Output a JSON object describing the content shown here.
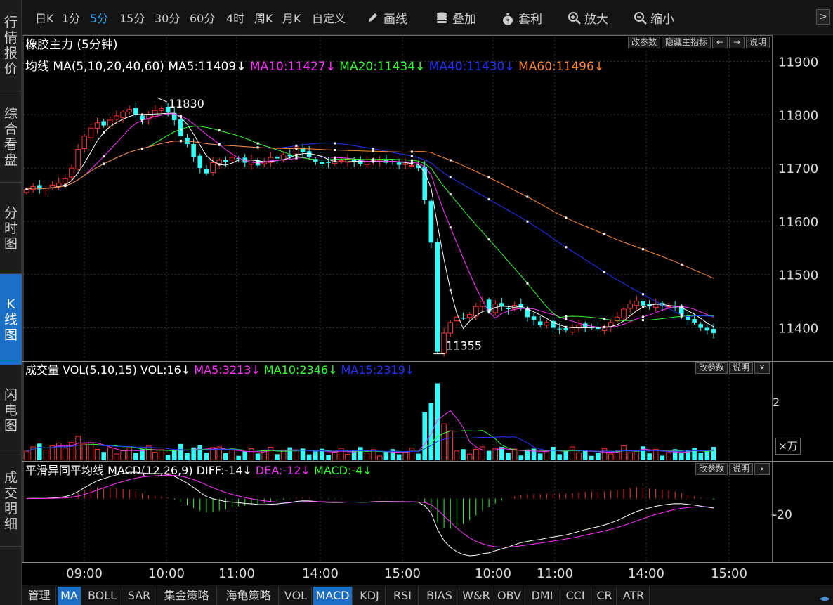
{
  "left_nav": [
    {
      "label": "行情报价",
      "active": false
    },
    {
      "label": "综合看盘",
      "active": false
    },
    {
      "label": "分时图",
      "active": false
    },
    {
      "label": "K线图",
      "active": true
    },
    {
      "label": "闪电图",
      "active": false
    },
    {
      "label": "成交明细",
      "active": false
    }
  ],
  "toolbar": {
    "periods": [
      "日K",
      "1分",
      "5分",
      "15分",
      "30分",
      "60分",
      "4时",
      "周K",
      "月K",
      "自定义"
    ],
    "active_period": "5分",
    "tools": [
      {
        "label": "画线",
        "icon": "pencil-icon"
      },
      {
        "label": "叠加",
        "icon": "database-icon"
      },
      {
        "label": "套利",
        "icon": "money-bag-icon"
      },
      {
        "label": "放大",
        "icon": "zoom-in-icon"
      },
      {
        "label": "缩小",
        "icon": "zoom-out-icon"
      }
    ],
    "next_label": ">"
  },
  "title": "橡胶主力 (5分钟)",
  "main_buttons": [
    "改参数",
    "隐藏主指标",
    "←",
    "→",
    "说明"
  ],
  "ma_legend": {
    "prefix": "均线 MA(5,10,20,40,60)",
    "items": [
      {
        "text": "MA5:11409↓",
        "color": "#ffffff"
      },
      {
        "text": "MA10:11427↓",
        "color": "#ff33ff"
      },
      {
        "text": "MA20:11434↓",
        "color": "#33ff33"
      },
      {
        "text": "MA40:11430↓",
        "color": "#2233ff"
      },
      {
        "text": "MA60:11496↓",
        "color": "#ff8833"
      }
    ]
  },
  "price_axis": [
    "11900",
    "11800",
    "11700",
    "11600",
    "11500",
    "11400"
  ],
  "annotations": {
    "high": "11830",
    "low": "11355"
  },
  "vol_legend": {
    "prefix": "成交量 VOL(5,10,15) VOL:16↓",
    "items": [
      {
        "text": "MA5:3213↓",
        "color": "#ff33ff"
      },
      {
        "text": "MA10:2346↓",
        "color": "#33ff33"
      },
      {
        "text": "MA15:2319↓",
        "color": "#2233ff"
      }
    ]
  },
  "vol_buttons": [
    "改参数",
    "说明",
    "x"
  ],
  "vol_axis": {
    "tick": "2",
    "unit": "×万"
  },
  "macd_legend": {
    "prefix": "平滑异同平均线 MACD(12,26,9) DIFF:-14↓",
    "items": [
      {
        "text": "DEA:-12↓",
        "color": "#ff33ff"
      },
      {
        "text": "MACD:-4↓",
        "color": "#33ff33"
      }
    ]
  },
  "macd_buttons": [
    "改参数",
    "说明",
    "x"
  ],
  "macd_axis": "-20",
  "time_axis": [
    "09:00",
    "10:00",
    "11:00",
    "14:00",
    "15:00",
    "10:00",
    "11:00",
    "14:00",
    "15:00"
  ],
  "bottom_tabs": [
    "管理",
    "MA",
    "BOLL",
    "SAR",
    "集金策略",
    "海龟策略",
    "VOL",
    "MACD",
    "KDJ",
    "RSI",
    "BIAS",
    "W&R",
    "OBV",
    "DMI",
    "CCI",
    "CR",
    "ATR"
  ],
  "active_tabs": [
    "MA",
    "MACD"
  ],
  "chart_data": {
    "type": "candlestick",
    "x_ticks": [
      "09:00",
      "10:00",
      "11:00",
      "14:00",
      "15:00",
      "10:00",
      "11:00",
      "14:00",
      "15:00"
    ],
    "ylim": [
      11340,
      11910
    ],
    "closes": [
      11660,
      11665,
      11660,
      11662,
      11668,
      11672,
      11680,
      11700,
      11735,
      11760,
      11775,
      11785,
      11780,
      11790,
      11798,
      11805,
      11810,
      11800,
      11790,
      11800,
      11808,
      11812,
      11805,
      11790,
      11760,
      11745,
      11720,
      11700,
      11690,
      11710,
      11715,
      11712,
      11720,
      11718,
      11710,
      11715,
      11705,
      11712,
      11720,
      11718,
      11725,
      11722,
      11740,
      11730,
      11720,
      11712,
      11708,
      11710,
      11712,
      11714,
      11716,
      11712,
      11708,
      11712,
      11716,
      11715,
      11710,
      11712,
      11706,
      11708,
      11705,
      11700,
      11640,
      11560,
      11355,
      11390,
      11410,
      11420,
      11418,
      11425,
      11440,
      11450,
      11430,
      11445,
      11440,
      11435,
      11442,
      11438,
      11420,
      11415,
      11405,
      11410,
      11400,
      11398,
      11395,
      11400,
      11405,
      11402,
      11400,
      11398,
      11402,
      11410,
      11420,
      11435,
      11445,
      11450,
      11442,
      11440,
      11445,
      11442,
      11440,
      11438,
      11425,
      11415,
      11410,
      11400,
      11395,
      11390
    ],
    "ma_series": [
      "MA5",
      "MA10",
      "MA20",
      "MA40",
      "MA60"
    ],
    "volume_ylim": [
      0,
      2.5
    ],
    "macd_axis_value": -20
  }
}
